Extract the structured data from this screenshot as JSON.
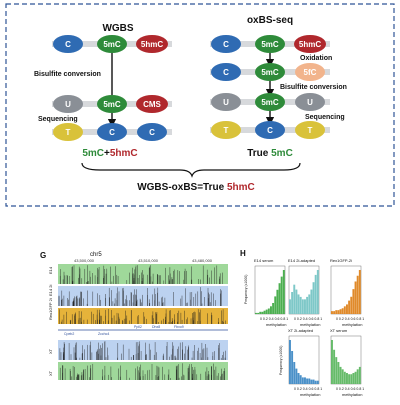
{
  "top": {
    "wgbs_title": "WGBS",
    "oxbs_title": "oxBS-seq",
    "row1_left": [
      "C",
      "5mC",
      "5hmC"
    ],
    "row1_right": [
      "C",
      "5mC",
      "5hmC"
    ],
    "bisulfite_conversion": "Bisulfite conversion",
    "oxidation": "Oxidation",
    "row_ox": [
      "C",
      "5mC",
      "5fC"
    ],
    "row2_left": [
      "U",
      "5mC",
      "CMS"
    ],
    "row2_right": [
      "U",
      "5mC",
      "U"
    ],
    "sequencing": "Sequencing",
    "row3_left": [
      "T",
      "C",
      "C"
    ],
    "row3_right": [
      "T",
      "C",
      "T"
    ],
    "result_left_a": "5mC",
    "result_left_plus": "+",
    "result_left_b": "5hmC",
    "result_right_a": "True ",
    "result_right_b": "5mC",
    "formula_a": "WGBS-oxBS=True ",
    "formula_b": "5hmC",
    "colors": {
      "blue": "#2f6bb3",
      "green": "#2e8b3a",
      "red": "#b0282d",
      "gray": "#8a8f96",
      "yellow": "#d9c23a",
      "peach": "#f2b48c",
      "border": "#2f5597"
    }
  },
  "panel_g": {
    "label": "G",
    "chrom": "chr5",
    "ticks": [
      "43,500,000",
      "43,510,000",
      "43,480,000"
    ],
    "track_labels": [
      "E14",
      "E14 2i",
      "Rex1GFP 2i",
      "XT",
      "XT"
    ],
    "genes": [
      "Cpeb2",
      "Zcchc4",
      "Ppil2",
      "Dhx8",
      "Fbxo9"
    ]
  },
  "panel_h": {
    "label": "H",
    "titles": [
      "E14 serum",
      "E14 2i-adapted",
      "Rex1GFP-2i",
      "XT 2i-adapted",
      "XT serum"
    ],
    "ylabel": "Frequency (x1000)",
    "xlabel": "methylation",
    "xticks": "0 0.2 0.4 0.6 0.8 1",
    "colors": [
      "#4caf50",
      "#7ec8c8",
      "#e08a2a",
      "#4a90c8",
      "#66bb6a"
    ]
  }
}
